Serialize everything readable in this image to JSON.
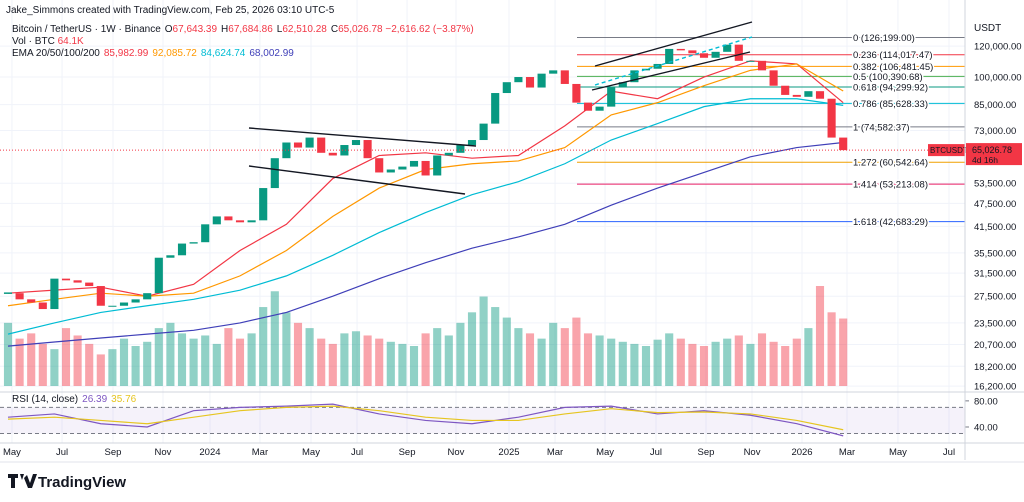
{
  "header": {
    "credit": "Jake_Simmons created with TradingView.com, Feb 25, 2026 03:10 UTC-5",
    "symbol": "Bitcoin / TetherUS · 1W · Binance",
    "ohlc": [
      {
        "key": "O",
        "value": "67,643.39"
      },
      {
        "key": "H",
        "value": "67,684.86"
      },
      {
        "key": "L",
        "value": "62,510.28"
      },
      {
        "key": "C",
        "value": "65,026.78"
      }
    ],
    "change": "−2,616.62 (−3.87%)",
    "ema_label": "EMA 20/50/100/200"
  },
  "footer": {
    "brand": "TradingView"
  },
  "chart_data": [
    {
      "type": "candlestick",
      "axis_title": "USDT",
      "log_scale": true,
      "grid": true,
      "ylim": [
        15830,
        157400
      ],
      "yticks": [
        {
          "value": 120000,
          "label": "120,000.00"
        },
        {
          "value": 100000,
          "label": "100,000.00"
        },
        {
          "value": 85000,
          "label": "85,000.00"
        },
        {
          "value": 73000,
          "label": "73,000.00"
        },
        {
          "value": 53500,
          "label": "53,500.00"
        },
        {
          "value": 47500,
          "label": "47,500.00"
        },
        {
          "value": 41500,
          "label": "41,500.00"
        },
        {
          "value": 35500,
          "label": "35,500.00"
        },
        {
          "value": 31500,
          "label": "31,500.00"
        },
        {
          "value": 27500,
          "label": "27,500.00"
        },
        {
          "value": 23500,
          "label": "23,500.00"
        },
        {
          "value": 20700,
          "label": "20,700.00"
        },
        {
          "value": 18200,
          "label": "18,200.00"
        },
        {
          "value": 16200,
          "label": "16,200.00"
        }
      ],
      "xlim": [
        -0.69,
        82.5
      ],
      "xticks": [
        {
          "value": 0.34,
          "label": "May"
        },
        {
          "value": 4.66,
          "label": "Jul"
        },
        {
          "value": 9.05,
          "label": "Sep"
        },
        {
          "value": 13.36,
          "label": "Nov"
        },
        {
          "value": 17.41,
          "label": "2024"
        },
        {
          "value": 21.72,
          "label": "Mar"
        },
        {
          "value": 26.12,
          "label": "May"
        },
        {
          "value": 30.09,
          "label": "Jul"
        },
        {
          "value": 34.4,
          "label": "Sep"
        },
        {
          "value": 38.62,
          "label": "Nov"
        },
        {
          "value": 43.19,
          "label": "2025"
        },
        {
          "value": 47.16,
          "label": "Mar"
        },
        {
          "value": 51.47,
          "label": "May"
        },
        {
          "value": 55.86,
          "label": "Jul"
        },
        {
          "value": 60.17,
          "label": "Sep"
        },
        {
          "value": 64.14,
          "label": "Nov"
        },
        {
          "value": 68.45,
          "label": "2026"
        },
        {
          "value": 72.33,
          "label": "Mar"
        },
        {
          "value": 76.72,
          "label": "May"
        },
        {
          "value": 81.12,
          "label": "Jul"
        }
      ],
      "up_color": "#089981",
      "down_color": "#f23645",
      "close": [
        28000,
        27000,
        26500,
        25500,
        30500,
        30200,
        29800,
        29200,
        26000,
        26000,
        26500,
        27000,
        28000,
        34500,
        35000,
        37500,
        37800,
        42000,
        44000,
        43000,
        42500,
        43000,
        52000,
        62000,
        68000,
        66000,
        70000,
        64000,
        63000,
        67000,
        69000,
        62000,
        57000,
        58000,
        59000,
        61000,
        56000,
        63000,
        64000,
        67000,
        69000,
        76000,
        91000,
        97000,
        100000,
        94000,
        102000,
        104000,
        96000,
        86000,
        82000,
        84000,
        94000,
        97000,
        104000,
        105000,
        108000,
        118000,
        117000,
        115000,
        112000,
        116000,
        121000,
        110000,
        110000,
        104000,
        95000,
        90000,
        89000,
        92000,
        88000,
        70000,
        65026.78
      ],
      "last_price": {
        "label": "BTCUSDT",
        "value_label": "65,026.78",
        "countdown": "4d 16h"
      },
      "series": [
        {
          "color": "#f23645",
          "legend_value": "85,982.99",
          "x": [
            0,
            4,
            8,
            12,
            16,
            20,
            24,
            28,
            32,
            36,
            40,
            44,
            48,
            52,
            56,
            60,
            64,
            68,
            72
          ],
          "values": [
            28000,
            28500,
            29000,
            27500,
            29500,
            36000,
            42000,
            55000,
            63000,
            64000,
            62000,
            63000,
            75000,
            92000,
            88000,
            100000,
            110000,
            108000,
            85982.99
          ]
        },
        {
          "color": "#ff9800",
          "legend_value": "92,085.72",
          "x": [
            0,
            4,
            8,
            12,
            16,
            20,
            24,
            28,
            32,
            36,
            40,
            44,
            48,
            52,
            56,
            60,
            64,
            68,
            72
          ],
          "values": [
            26000,
            27000,
            28000,
            27500,
            28000,
            31000,
            36000,
            44000,
            52000,
            58000,
            60000,
            61000,
            66000,
            80000,
            86000,
            95000,
            104000,
            108000,
            92085.72
          ]
        },
        {
          "color": "#00bcd4",
          "legend_value": "84,624.74",
          "x": [
            0,
            4,
            8,
            12,
            16,
            20,
            24,
            28,
            32,
            36,
            40,
            44,
            48,
            52,
            56,
            60,
            64,
            68,
            72
          ],
          "values": [
            22000,
            23500,
            25000,
            26000,
            27000,
            28500,
            31000,
            35000,
            40000,
            45000,
            50000,
            54000,
            60000,
            69000,
            76000,
            84000,
            88000,
            88000,
            84624.74
          ]
        },
        {
          "color": "#3f3fb8",
          "legend_value": "68,002.99",
          "x": [
            0,
            4,
            8,
            12,
            16,
            20,
            24,
            28,
            32,
            36,
            40,
            44,
            48,
            52,
            56,
            60,
            64,
            68,
            72
          ],
          "values": [
            20500,
            21000,
            21500,
            22000,
            22500,
            23500,
            25000,
            27500,
            30500,
            33500,
            36500,
            39000,
            42000,
            47000,
            52000,
            57000,
            62500,
            66000,
            68002.99
          ]
        }
      ],
      "volume": {
        "name": "Vol · BTC",
        "legend_value": "64.1K",
        "values": [
          60,
          45,
          50,
          40,
          35,
          55,
          48,
          40,
          30,
          35,
          45,
          38,
          42,
          55,
          60,
          50,
          45,
          48,
          40,
          55,
          45,
          50,
          75,
          90,
          70,
          60,
          55,
          45,
          40,
          50,
          52,
          48,
          45,
          42,
          40,
          38,
          50,
          55,
          48,
          60,
          70,
          85,
          75,
          65,
          55,
          50,
          45,
          60,
          55,
          65,
          50,
          48,
          45,
          42,
          40,
          38,
          44,
          50,
          45,
          40,
          38,
          42,
          45,
          48,
          40,
          50,
          42,
          38,
          45,
          55,
          95,
          70,
          64.1
        ]
      },
      "fib_levels": [
        {
          "value": 126199,
          "label": "0 (126,199.00)",
          "color": "#787b86"
        },
        {
          "value": 114017.47,
          "label": "0.236 (114,017.47)",
          "color": "#f23645"
        },
        {
          "value": 106481.45,
          "label": "0.382 (106,481.45)",
          "color": "#ff9800"
        },
        {
          "value": 100390.68,
          "label": "0.5 (100,390.68)",
          "color": "#4caf50"
        },
        {
          "value": 94299.92,
          "label": "0.618 (94,299.92)",
          "color": "#089981"
        },
        {
          "value": 85628.33,
          "label": "0.786 (85,628.33)",
          "color": "#00bcd4"
        },
        {
          "value": 74582.37,
          "label": "1 (74,582.37)",
          "color": "#787b86"
        },
        {
          "value": 60542.64,
          "label": "1.272 (60,542.64)",
          "color": "#f0a000"
        },
        {
          "value": 53213.08,
          "label": "1.414 (53,213.08)",
          "color": "#e91e63"
        },
        {
          "value": 42683.29,
          "label": "1.618 (42,683.29)",
          "color": "#2962ff"
        }
      ]
    },
    {
      "type": "line",
      "title": "RSI (14, close)",
      "xlim": [
        -0.69,
        82.5
      ],
      "ylim": [
        17,
        89
      ],
      "yticks": [
        {
          "value": 80,
          "label": "80.00"
        },
        {
          "value": 40,
          "label": "40.00"
        }
      ],
      "band": [
        30,
        70
      ],
      "band_color": "#7e57c2",
      "series": [
        {
          "color": "#7e57c2",
          "legend_value": "26.39",
          "x": [
            0,
            4,
            8,
            12,
            16,
            20,
            24,
            28,
            32,
            36,
            40,
            44,
            48,
            52,
            56,
            60,
            64,
            68,
            72
          ],
          "values": [
            55,
            60,
            45,
            40,
            65,
            70,
            72,
            75,
            60,
            50,
            45,
            55,
            70,
            72,
            60,
            65,
            58,
            45,
            26.39
          ]
        },
        {
          "color": "#e6c520",
          "legend_value": "35.76",
          "x": [
            0,
            4,
            8,
            12,
            16,
            20,
            24,
            28,
            32,
            36,
            40,
            44,
            48,
            52,
            56,
            60,
            64,
            68,
            72
          ],
          "values": [
            52,
            55,
            50,
            45,
            55,
            65,
            70,
            72,
            65,
            55,
            50,
            50,
            60,
            68,
            62,
            63,
            60,
            50,
            35.76
          ]
        }
      ]
    }
  ]
}
